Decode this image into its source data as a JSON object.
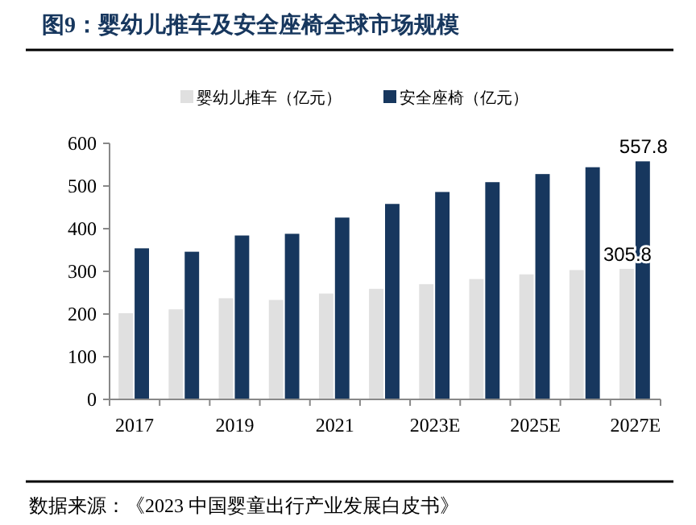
{
  "chart_data": {
    "type": "bar",
    "title": "图9：婴幼儿推车及安全座椅全球市场规模",
    "categories": [
      "2017",
      null,
      "2019",
      null,
      "2021",
      null,
      "2023E",
      null,
      "2025E",
      null,
      "2027E"
    ],
    "series": [
      {
        "name": "婴幼儿推车（亿元）",
        "color": "#e0e0e0",
        "values": [
          202,
          211,
          237,
          233,
          248,
          259,
          270,
          282,
          293,
          303,
          305.8
        ],
        "value_labels": [
          null,
          null,
          null,
          null,
          null,
          null,
          null,
          null,
          null,
          null,
          "305.8"
        ]
      },
      {
        "name": "安全座椅（亿元）",
        "color": "#17375e",
        "values": [
          354,
          346,
          384,
          388,
          426,
          458,
          486,
          509,
          528,
          544,
          557.8
        ],
        "value_labels": [
          null,
          null,
          null,
          null,
          null,
          null,
          null,
          null,
          null,
          null,
          "557.8"
        ]
      }
    ],
    "ylim": [
      0,
      600
    ],
    "yticks": [
      0,
      100,
      200,
      300,
      400,
      500,
      600
    ],
    "grid": false,
    "legend": "top",
    "annotations": [
      "数据来源：《2023 中国婴童出行产业发展白皮书》"
    ]
  }
}
